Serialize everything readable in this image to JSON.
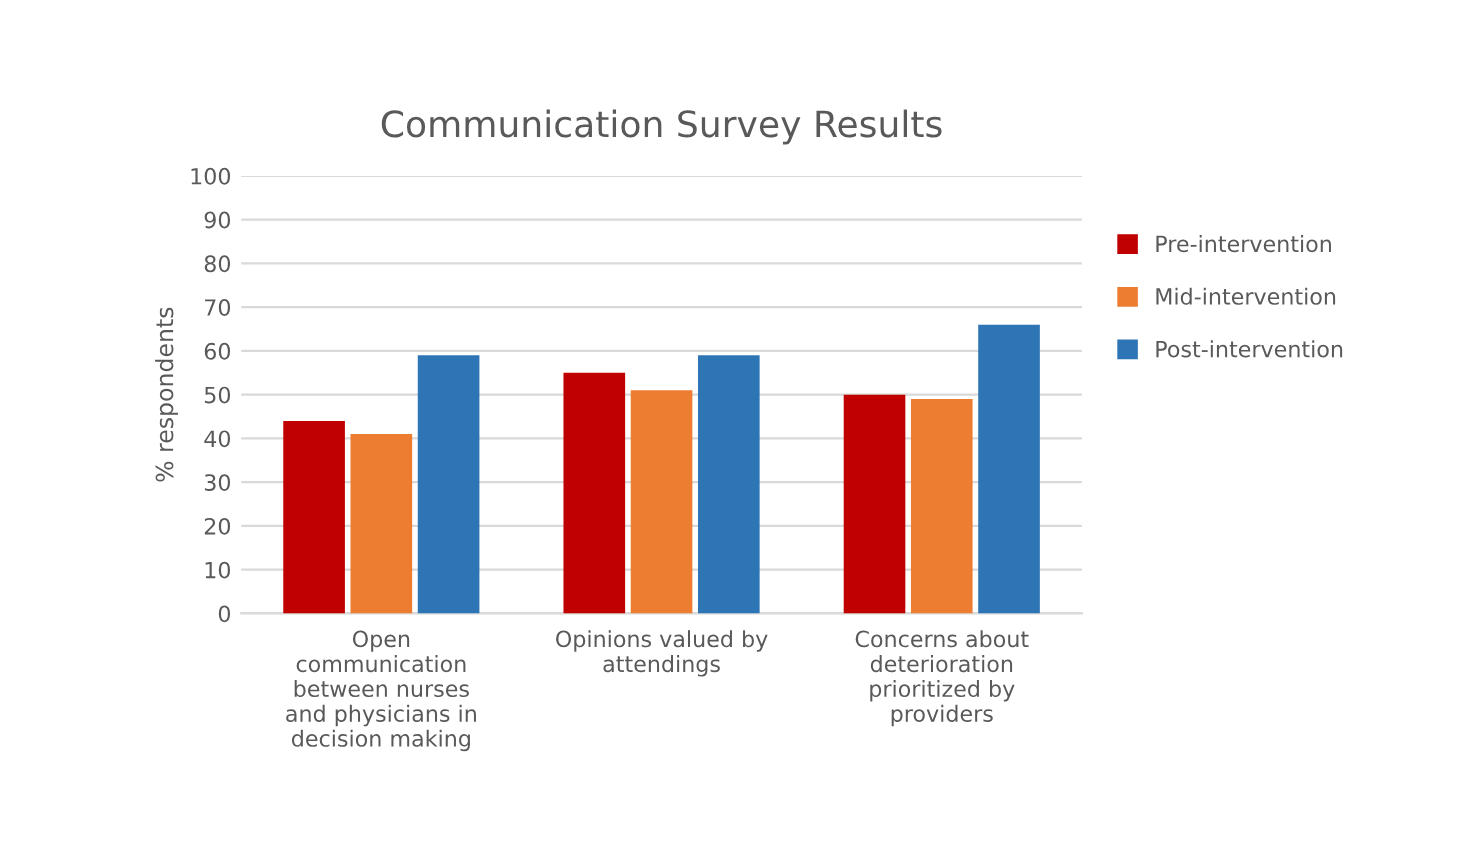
{
  "chart_data": {
    "type": "bar",
    "title": "Communication Survey Results",
    "ylabel": "% respondents",
    "categories": [
      "Open\ncommunication\nbetween nurses\nand physicians in\ndecision making",
      "Opinions valued by\nattendings",
      "Concerns about\ndeterioration\nprioritized by\nproviders"
    ],
    "series": [
      {
        "name": "Pre-intervention",
        "color": "#c00000",
        "values": [
          44,
          55,
          50
        ]
      },
      {
        "name": "Mid-intervention",
        "color": "#ed7d31",
        "values": [
          41,
          51,
          49
        ]
      },
      {
        "name": "Post-intervention",
        "color": "#2e75b6",
        "values": [
          59,
          59,
          66
        ]
      }
    ],
    "ylim": [
      0,
      100
    ],
    "yticks": [
      0,
      10,
      20,
      30,
      40,
      50,
      60,
      70,
      80,
      90,
      100
    ],
    "grid": "y",
    "legend": "right"
  }
}
